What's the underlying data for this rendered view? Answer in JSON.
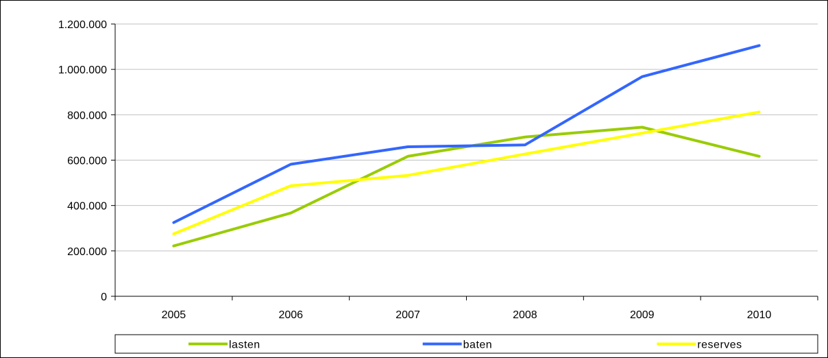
{
  "chart_data": {
    "type": "line",
    "title": "",
    "xlabel": "",
    "ylabel": "",
    "x": [
      "2005",
      "2006",
      "2007",
      "2008",
      "2009",
      "2010"
    ],
    "ylim": [
      0,
      1200000
    ],
    "yticks": [
      0,
      200000,
      400000,
      600000,
      800000,
      1000000,
      1200000
    ],
    "ytick_labels": [
      "0",
      "200.000",
      "400.000",
      "600.000",
      "800.000",
      "1.000.000",
      "1.200.000"
    ],
    "grid": "horizontal",
    "legend_position": "bottom",
    "series": [
      {
        "name": "lasten",
        "color": "#99cc00",
        "values": [
          222000,
          367000,
          617000,
          702000,
          745000,
          617000
        ]
      },
      {
        "name": "baten",
        "color": "#3366ff",
        "values": [
          325000,
          582000,
          659000,
          667000,
          968000,
          1105000
        ]
      },
      {
        "name": "reserves",
        "color": "#ffff00",
        "values": [
          275000,
          487000,
          533000,
          627000,
          719000,
          812000
        ]
      }
    ]
  }
}
